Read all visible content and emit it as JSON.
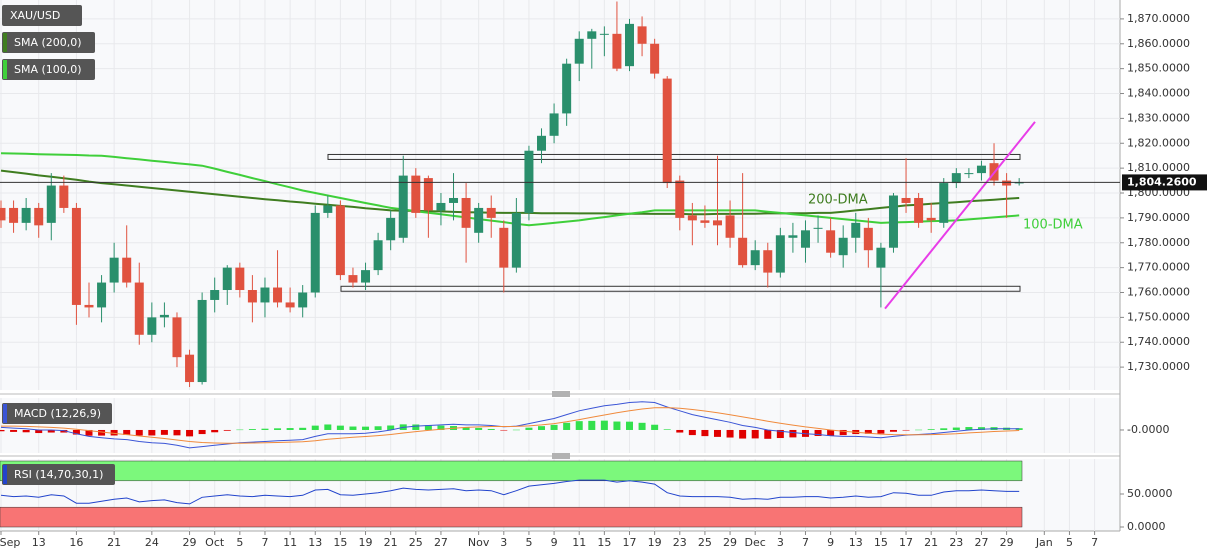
{
  "chart_data": {
    "type": "candlestick",
    "symbol": "XAU/USD",
    "categories": [
      "Sep",
      null,
      null,
      "13",
      null,
      null,
      "16",
      null,
      null,
      "21",
      null,
      null,
      "24",
      null,
      null,
      "29",
      null,
      "Oct",
      null,
      "5",
      null,
      "7",
      null,
      "11",
      null,
      "13",
      null,
      "15",
      null,
      "19",
      null,
      "21",
      null,
      "25",
      null,
      "27",
      null,
      null,
      "Nov",
      null,
      "3",
      null,
      "5",
      null,
      "9",
      null,
      "11",
      null,
      "15",
      null,
      "17",
      null,
      "19",
      null,
      "23",
      null,
      "25",
      null,
      "29",
      null,
      "Dec",
      null,
      "3",
      null,
      "7",
      null,
      "9",
      null,
      "13",
      null,
      "15",
      null,
      "17",
      null,
      "21",
      null,
      "23",
      null,
      "27",
      null,
      "29",
      null,
      null,
      "Jan",
      null,
      "5",
      null,
      "7"
    ],
    "open": [
      1794,
      1794,
      1788,
      1794,
      1788,
      1803,
      1794,
      1755,
      1754,
      1764,
      1774,
      1764,
      1743,
      1750,
      1750,
      1735,
      1724,
      1757,
      1761,
      1770,
      1761,
      1756,
      1762,
      1756,
      1754,
      1760,
      1792,
      1795,
      1767,
      1764,
      1769,
      1781,
      1782,
      1807,
      1806,
      1793,
      1796,
      1798,
      1784,
      1794,
      1786,
      1770,
      1792,
      1817,
      1823,
      1832,
      1852,
      1862,
      1864,
      1864,
      1851,
      1867,
      1860,
      1846,
      1805,
      1791,
      1789,
      1789,
      1791,
      1782,
      1771,
      1777,
      1768,
      1782,
      1778,
      1786,
      1785,
      1775,
      1782,
      1786,
      1770,
      1778,
      1798,
      1798,
      1790,
      1788,
      1804,
      1808,
      1808,
      1812,
      1805,
      1804,
      null,
      null,
      null,
      null,
      null,
      null
    ],
    "high": [
      1797,
      1797,
      1798,
      1796,
      1808,
      1807,
      1796,
      1764,
      1767,
      1780,
      1787,
      1772,
      1756,
      1756,
      1752,
      1737,
      1760,
      1766,
      1771,
      1772,
      1767,
      1766,
      1777,
      1762,
      1763,
      1795,
      1799,
      1797,
      1770,
      1772,
      1784,
      1793,
      1815,
      1810,
      1807,
      1800,
      1808,
      1804,
      1796,
      1799,
      1789,
      1798,
      1819,
      1826,
      1836,
      1854,
      1865,
      1866,
      1867,
      1877,
      1870,
      1871,
      1862,
      1847,
      1807,
      1796,
      1795,
      1815,
      1797,
      1808,
      1781,
      1780,
      1786,
      1788,
      1789,
      1791,
      1790,
      1787,
      1792,
      1790,
      1780,
      1800,
      1814,
      1800,
      1796,
      1806,
      1810,
      1810,
      1813,
      1820,
      1808,
      1806,
      null,
      null,
      null,
      null,
      null,
      null
    ],
    "low": [
      1786,
      1784,
      1785,
      1782,
      1781,
      1792,
      1747,
      1750,
      1748,
      1760,
      1762,
      1739,
      1740,
      1746,
      1730,
      1722,
      1723,
      1752,
      1755,
      1758,
      1748,
      1750,
      1754,
      1752,
      1750,
      1758,
      1790,
      1765,
      1762,
      1761,
      1767,
      1777,
      1780,
      1790,
      1782,
      1787,
      1789,
      1772,
      1780,
      1782,
      1760,
      1768,
      1789,
      1812,
      1820,
      1827,
      1845,
      1850,
      1855,
      1849,
      1849,
      1855,
      1846,
      1802,
      1785,
      1779,
      1786,
      1779,
      1778,
      1770,
      1769,
      1762,
      1766,
      1776,
      1772,
      1780,
      1774,
      1770,
      1776,
      1770,
      1754,
      1776,
      1792,
      1786,
      1784,
      1786,
      1802,
      1806,
      1805,
      1803,
      1790,
      1803,
      null,
      null,
      null,
      null,
      null,
      null
    ],
    "close": [
      1789,
      1788,
      1794,
      1787,
      1803,
      1794,
      1755,
      1754,
      1764,
      1774,
      1764,
      1743,
      1750,
      1751,
      1734,
      1724,
      1757,
      1761,
      1770,
      1761,
      1756,
      1762,
      1756,
      1754,
      1760,
      1792,
      1795,
      1767,
      1764,
      1769,
      1781,
      1790,
      1807,
      1792,
      1793,
      1796,
      1798,
      1786,
      1794,
      1790,
      1770,
      1792,
      1817,
      1823,
      1832,
      1852,
      1862,
      1865,
      1864,
      1850,
      1868,
      1860,
      1848,
      1804,
      1790,
      1789,
      1788,
      1787,
      1782,
      1771,
      1777,
      1768,
      1783,
      1783,
      1785,
      1786,
      1776,
      1782,
      1788,
      1777,
      1778,
      1799,
      1796,
      1788,
      1789,
      1804,
      1808,
      1808,
      1811,
      1805,
      1803,
      1804.26,
      null,
      null,
      null,
      null,
      null,
      null
    ],
    "up_color": "#2a8f6c",
    "down_color": "#e0523f",
    "ylim": [
      1720.8,
      1877.6
    ],
    "yticks": [
      {
        "value": 1730,
        "label": "1,730.0000"
      },
      {
        "value": 1740,
        "label": "1,740.0000"
      },
      {
        "value": 1750,
        "label": "1,750.0000"
      },
      {
        "value": 1760,
        "label": "1,760.0000"
      },
      {
        "value": 1770,
        "label": "1,770.0000"
      },
      {
        "value": 1780,
        "label": "1,780.0000"
      },
      {
        "value": 1790,
        "label": "1,790.0000"
      },
      {
        "value": 1800,
        "label": "1,800.0000"
      },
      {
        "value": 1810,
        "label": "1,810.0000"
      },
      {
        "value": 1820,
        "label": "1,820.0000"
      },
      {
        "value": 1830,
        "label": "1,830.0000"
      },
      {
        "value": 1840,
        "label": "1,840.0000"
      },
      {
        "value": 1850,
        "label": "1,850.0000"
      },
      {
        "value": 1860,
        "label": "1,860.0000"
      },
      {
        "value": 1870,
        "label": "1,870.0000"
      }
    ],
    "grid": true,
    "last_price": {
      "value": 1804.26,
      "label": "1,804.2600"
    },
    "series": [
      {
        "name": "SMA (200,0)",
        "color": "#3f7d20",
        "values": [
          1809,
          1808.4,
          1807.8,
          1807.1,
          1806.5,
          1805.9,
          1805.3,
          1804.6,
          1804,
          1803.5,
          1803,
          1802.5,
          1802,
          1801.5,
          1801,
          1800.5,
          1800,
          1799.5,
          1799,
          1798.5,
          1798,
          1797.5,
          1797.1,
          1796.6,
          1796.2,
          1795.7,
          1795.3,
          1794.8,
          1794.4,
          1793.9,
          1793.5,
          1793,
          1792.9,
          1792.8,
          1792.7,
          1792.6,
          1792.4,
          1792.3,
          1792.2,
          1792.1,
          1792,
          1792,
          1792,
          1791.9,
          1791.9,
          1791.9,
          1791.8,
          1791.8,
          1791.8,
          1791.7,
          1791.7,
          1791.7,
          1791.6,
          1791.6,
          1791.6,
          1791.5,
          1791.5,
          1791.6,
          1791.6,
          1791.7,
          1791.7,
          1791.8,
          1791.8,
          1791.9,
          1791.9,
          1792,
          1792,
          1792.5,
          1793,
          1793.5,
          1794,
          1794.5,
          1795,
          1795.3,
          1795.7,
          1796,
          1796.3,
          1796.7,
          1797,
          1797.3,
          1797.7,
          1798,
          null,
          null,
          null,
          null,
          null,
          null
        ]
      },
      {
        "name": "SMA (100,0)",
        "color": "#3fcf3a",
        "values": [
          1816,
          1815.9,
          1815.8,
          1815.6,
          1815.5,
          1815.4,
          1815.3,
          1815.1,
          1815,
          1814.5,
          1814,
          1813.5,
          1813,
          1812.5,
          1812,
          1811.5,
          1811,
          1809.8,
          1808.5,
          1807.3,
          1806,
          1804.8,
          1803.5,
          1802.3,
          1801,
          1800,
          1799,
          1798,
          1797,
          1796,
          1795,
          1794,
          1793.4,
          1792.7,
          1792.1,
          1791.5,
          1790.8,
          1790.2,
          1789.5,
          1788.9,
          1788.3,
          1787.6,
          1787,
          1787.5,
          1788,
          1788.5,
          1789,
          1789.7,
          1790.3,
          1791,
          1791.7,
          1792.3,
          1793,
          1793,
          1793,
          1793,
          1793,
          1793,
          1793,
          1793,
          1793,
          1792.5,
          1792,
          1791.5,
          1791,
          1790.5,
          1790,
          1789.5,
          1789,
          1788.5,
          1788,
          1788.2,
          1788.3,
          1788.5,
          1788.7,
          1788.8,
          1789,
          1789.4,
          1789.8,
          1790.2,
          1790.6,
          1791,
          null,
          null,
          null,
          null,
          null,
          null
        ]
      }
    ],
    "annotations": [
      {
        "text": "200-DMA",
        "color": "#3f7d20"
      },
      {
        "text": "100-DMA",
        "color": "#3fcf3a"
      }
    ],
    "zones": [
      {
        "low": 1813.5,
        "high": 1815.5
      },
      {
        "low": 1760.5,
        "high": 1762.5
      }
    ],
    "trendline": {
      "color": "#e83de8",
      "values": [
        1753.5,
        1828.6
      ]
    },
    "macd": {
      "title": "MACD (12,26,9)",
      "ylim": [
        -18,
        25
      ],
      "yticks": [
        {
          "value": 0,
          "label": "-0.0000"
        }
      ],
      "line_color": "#3b55d6",
      "signal_color": "#f08a3c",
      "up_color": "#33e04d",
      "down_color": "#e00000",
      "macd_line": [
        2,
        1.5,
        1,
        0,
        0,
        -0.5,
        -3,
        -5,
        -6,
        -7,
        -7.5,
        -9,
        -10,
        -10.5,
        -12,
        -14,
        -13,
        -12,
        -11,
        -10,
        -9.5,
        -9,
        -8.5,
        -8,
        -7.5,
        -5,
        -3,
        -3,
        -3,
        -2.5,
        -1.5,
        0,
        2,
        3,
        3.5,
        4,
        4.5,
        4,
        4,
        3.5,
        2.5,
        3,
        5,
        7,
        9,
        12,
        15,
        17,
        19,
        20,
        21.5,
        22,
        21.5,
        18,
        15,
        12,
        10,
        8,
        6,
        3.5,
        2,
        0,
        -1,
        -2,
        -3,
        -3.5,
        -4.5,
        -5,
        -5,
        -5.5,
        -6,
        -5,
        -4,
        -3.5,
        -3,
        -2,
        -1,
        0,
        0.5,
        1,
        1,
        1,
        null,
        null,
        null,
        null,
        null,
        null
      ],
      "signal_line": [
        3,
        3,
        2.8,
        2.4,
        2,
        1.5,
        0.6,
        -0.5,
        -1.6,
        -2.7,
        -3.6,
        -4.7,
        -5.7,
        -6.7,
        -7.8,
        -9,
        -9.8,
        -10.2,
        -10.4,
        -10.3,
        -10.2,
        -10,
        -9.8,
        -9.5,
        -9.2,
        -8.4,
        -7.3,
        -6.4,
        -5.7,
        -5.1,
        -4.4,
        -3.5,
        -2.4,
        -1.3,
        -0.3,
        0.6,
        1.4,
        2,
        2.4,
        2.7,
        2.7,
        2.8,
        3.2,
        4,
        5,
        6.4,
        8.1,
        9.9,
        11.7,
        13.4,
        15,
        16.4,
        17.4,
        17.5,
        17,
        16,
        14.8,
        13.4,
        11.9,
        10.2,
        8.6,
        6.9,
        5.3,
        3.8,
        2.4,
        1.2,
        0,
        -1,
        -1.8,
        -2.5,
        -3.2,
        -3.6,
        -3.7,
        -3.7,
        -3.6,
        -3.3,
        -2.9,
        -2.3,
        -1.7,
        -1.2,
        -0.8,
        -0.4,
        null,
        null,
        null,
        null,
        null,
        null
      ],
      "histogram": [
        -1,
        -1.5,
        -1.8,
        -2.4,
        -2,
        -2,
        -3.6,
        -4.5,
        -4.4,
        -4.3,
        -3.9,
        -4.3,
        -4.3,
        -3.8,
        -4.2,
        -5,
        -3.2,
        -1.8,
        -0.6,
        0.3,
        0.7,
        1,
        1.3,
        1.5,
        1.7,
        3.4,
        4.3,
        3.4,
        2.7,
        2.6,
        2.9,
        3.5,
        4.4,
        4.3,
        3.8,
        3.4,
        3.1,
        2,
        1.6,
        0.8,
        -0.2,
        0.2,
        1.8,
        3,
        4,
        5.6,
        6.9,
        7.1,
        7.3,
        6.6,
        6.5,
        5.6,
        4.1,
        0.5,
        -2,
        -4,
        -4.8,
        -5.4,
        -5.9,
        -6.7,
        -6.6,
        -6.9,
        -6.3,
        -5.8,
        -5.4,
        -4.7,
        -4.5,
        -4,
        -3.2,
        -3,
        -2.8,
        -1.4,
        -0.3,
        0.2,
        0.6,
        1.3,
        1.9,
        2.3,
        2.2,
        2.2,
        1.8,
        1.4,
        null,
        null,
        null,
        null,
        null,
        null
      ]
    },
    "rsi": {
      "title": "RSI (14,70,30,1)",
      "ylim": [
        0,
        100
      ],
      "yticks": [
        {
          "value": 0,
          "label": "0.0000"
        },
        {
          "value": 50,
          "label": "50.0000"
        }
      ],
      "overbought": 70,
      "oversold": 30,
      "color": "#2244cc",
      "overbought_color": "#7cf87c",
      "oversold_color": "#f87474",
      "values": [
        48,
        46,
        47,
        45,
        49,
        47,
        36,
        36,
        39,
        42,
        44,
        38,
        40,
        41,
        37,
        35,
        45,
        47,
        49,
        47,
        46,
        48,
        47,
        46,
        48,
        56,
        57,
        49,
        48,
        50,
        52,
        55,
        59,
        57,
        56,
        57,
        58,
        55,
        56,
        55,
        49,
        55,
        62,
        64,
        66,
        69,
        71,
        71,
        71,
        68,
        70,
        68,
        65,
        52,
        47,
        46,
        46,
        46,
        45,
        42,
        43,
        42,
        45,
        45,
        46,
        46,
        44,
        45,
        47,
        45,
        46,
        52,
        51,
        48,
        48,
        53,
        55,
        55,
        56,
        55,
        54,
        54,
        null,
        null,
        null,
        null,
        null,
        null
      ]
    }
  }
}
